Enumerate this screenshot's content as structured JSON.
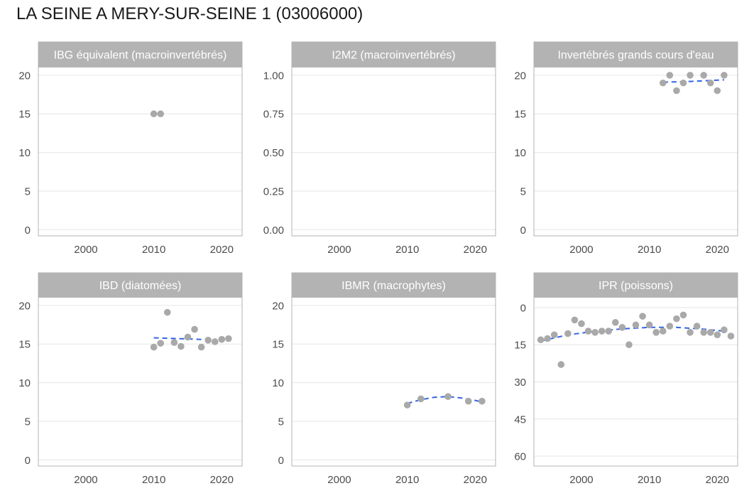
{
  "title": "LA SEINE A MERY-SUR-SEINE 1 (03006000)",
  "colors": {
    "point": "#a9a9a9",
    "trend": "#3366e6",
    "strip": "#b3b3b3",
    "grid": "#e6e6e6",
    "border": "#b3b3b3"
  },
  "chart_data": [
    {
      "type": "scatter",
      "title": "IBG équivalent (macroinvertébrés)",
      "xlim": [
        1993,
        2023
      ],
      "ylim": [
        -0.8,
        21
      ],
      "x_ticks": [
        2000,
        2010,
        2020
      ],
      "y_ticks": [
        0,
        5,
        10,
        15,
        20
      ],
      "y_tick_labels": [
        "0",
        "5",
        "10",
        "15",
        "20"
      ],
      "y_reversed": false,
      "points": [
        [
          2010,
          15
        ],
        [
          2011,
          15
        ]
      ],
      "trend": []
    },
    {
      "type": "scatter",
      "title": "I2M2 (macroinvertébrés)",
      "xlim": [
        1993,
        2023
      ],
      "ylim": [
        -0.04,
        1.05
      ],
      "x_ticks": [
        2000,
        2010,
        2020
      ],
      "y_ticks": [
        0,
        0.25,
        0.5,
        0.75,
        1
      ],
      "y_tick_labels": [
        "0.00",
        "0.25",
        "0.50",
        "0.75",
        "1.00"
      ],
      "y_reversed": false,
      "points": [],
      "trend": []
    },
    {
      "type": "scatter",
      "title": "Invertébrés grands cours d'eau",
      "xlim": [
        1993,
        2023
      ],
      "ylim": [
        -0.8,
        21
      ],
      "x_ticks": [
        2000,
        2010,
        2020
      ],
      "y_ticks": [
        0,
        5,
        10,
        15,
        20
      ],
      "y_tick_labels": [
        "0",
        "5",
        "10",
        "15",
        "20"
      ],
      "y_reversed": false,
      "points": [
        [
          2012,
          19
        ],
        [
          2013,
          20
        ],
        [
          2014,
          18
        ],
        [
          2015,
          19
        ],
        [
          2016,
          20
        ],
        [
          2018,
          20
        ],
        [
          2019,
          19
        ],
        [
          2020,
          18
        ],
        [
          2021,
          20
        ]
      ],
      "trend": [
        [
          2012,
          19.1
        ],
        [
          2016,
          19.2
        ],
        [
          2021,
          19.4
        ]
      ]
    },
    {
      "type": "scatter",
      "title": "IBD (diatomées)",
      "xlim": [
        1993,
        2023
      ],
      "ylim": [
        -0.8,
        21
      ],
      "x_ticks": [
        2000,
        2010,
        2020
      ],
      "y_ticks": [
        0,
        5,
        10,
        15,
        20
      ],
      "y_tick_labels": [
        "0",
        "5",
        "10",
        "15",
        "20"
      ],
      "y_reversed": false,
      "points": [
        [
          2010,
          14.6
        ],
        [
          2011,
          15.1
        ],
        [
          2012,
          19.1
        ],
        [
          2013,
          15.2
        ],
        [
          2014,
          14.7
        ],
        [
          2015,
          15.9
        ],
        [
          2016,
          16.9
        ],
        [
          2017,
          14.6
        ],
        [
          2018,
          15.5
        ],
        [
          2019,
          15.3
        ],
        [
          2020,
          15.6
        ],
        [
          2021,
          15.7
        ]
      ],
      "trend": [
        [
          2010,
          15.8
        ],
        [
          2017,
          15.6
        ]
      ]
    },
    {
      "type": "scatter",
      "title": "IBMR (macrophytes)",
      "xlim": [
        1993,
        2023
      ],
      "ylim": [
        -0.8,
        21
      ],
      "x_ticks": [
        2000,
        2010,
        2020
      ],
      "y_ticks": [
        0,
        5,
        10,
        15,
        20
      ],
      "y_tick_labels": [
        "0",
        "5",
        "10",
        "15",
        "20"
      ],
      "y_reversed": false,
      "points": [
        [
          2010,
          7.1
        ],
        [
          2012,
          7.9
        ],
        [
          2016,
          8.2
        ],
        [
          2019,
          7.6
        ],
        [
          2021,
          7.6
        ]
      ],
      "trend": [
        [
          2010,
          7.3
        ],
        [
          2012,
          7.8
        ],
        [
          2014,
          8.1
        ],
        [
          2016,
          8.2
        ],
        [
          2018,
          8.0
        ],
        [
          2020,
          7.7
        ],
        [
          2021,
          7.5
        ]
      ]
    },
    {
      "type": "scatter",
      "title": "IPR (poissons)",
      "xlim": [
        1993,
        2023
      ],
      "ylim": [
        -4,
        64
      ],
      "x_ticks": [
        2000,
        2010,
        2020
      ],
      "y_ticks": [
        0,
        15,
        30,
        45,
        60
      ],
      "y_tick_labels": [
        "0",
        "15",
        "30",
        "45",
        "60"
      ],
      "y_reversed": true,
      "points": [
        [
          1994,
          13
        ],
        [
          1995,
          12.5
        ],
        [
          1996,
          11
        ],
        [
          1997,
          23
        ],
        [
          1998,
          10.5
        ],
        [
          1999,
          5
        ],
        [
          2000,
          6.5
        ],
        [
          2001,
          9.5
        ],
        [
          2002,
          10
        ],
        [
          2003,
          9.5
        ],
        [
          2004,
          9.5
        ],
        [
          2005,
          6
        ],
        [
          2006,
          8
        ],
        [
          2007,
          15
        ],
        [
          2008,
          7
        ],
        [
          2009,
          3.5
        ],
        [
          2010,
          7
        ],
        [
          2011,
          10
        ],
        [
          2012,
          9.5
        ],
        [
          2013,
          7.5
        ],
        [
          2014,
          4.5
        ],
        [
          2015,
          3
        ],
        [
          2016,
          10
        ],
        [
          2017,
          7.5
        ],
        [
          2018,
          10
        ],
        [
          2019,
          10
        ],
        [
          2020,
          11
        ],
        [
          2021,
          9
        ],
        [
          2022,
          11.5
        ]
      ],
      "trend": [
        [
          1994,
          13.5
        ],
        [
          1998,
          11
        ],
        [
          2002,
          9.6
        ],
        [
          2006,
          8.6
        ],
        [
          2010,
          8
        ],
        [
          2014,
          8
        ],
        [
          2018,
          8.7
        ],
        [
          2021,
          9.5
        ]
      ]
    }
  ]
}
